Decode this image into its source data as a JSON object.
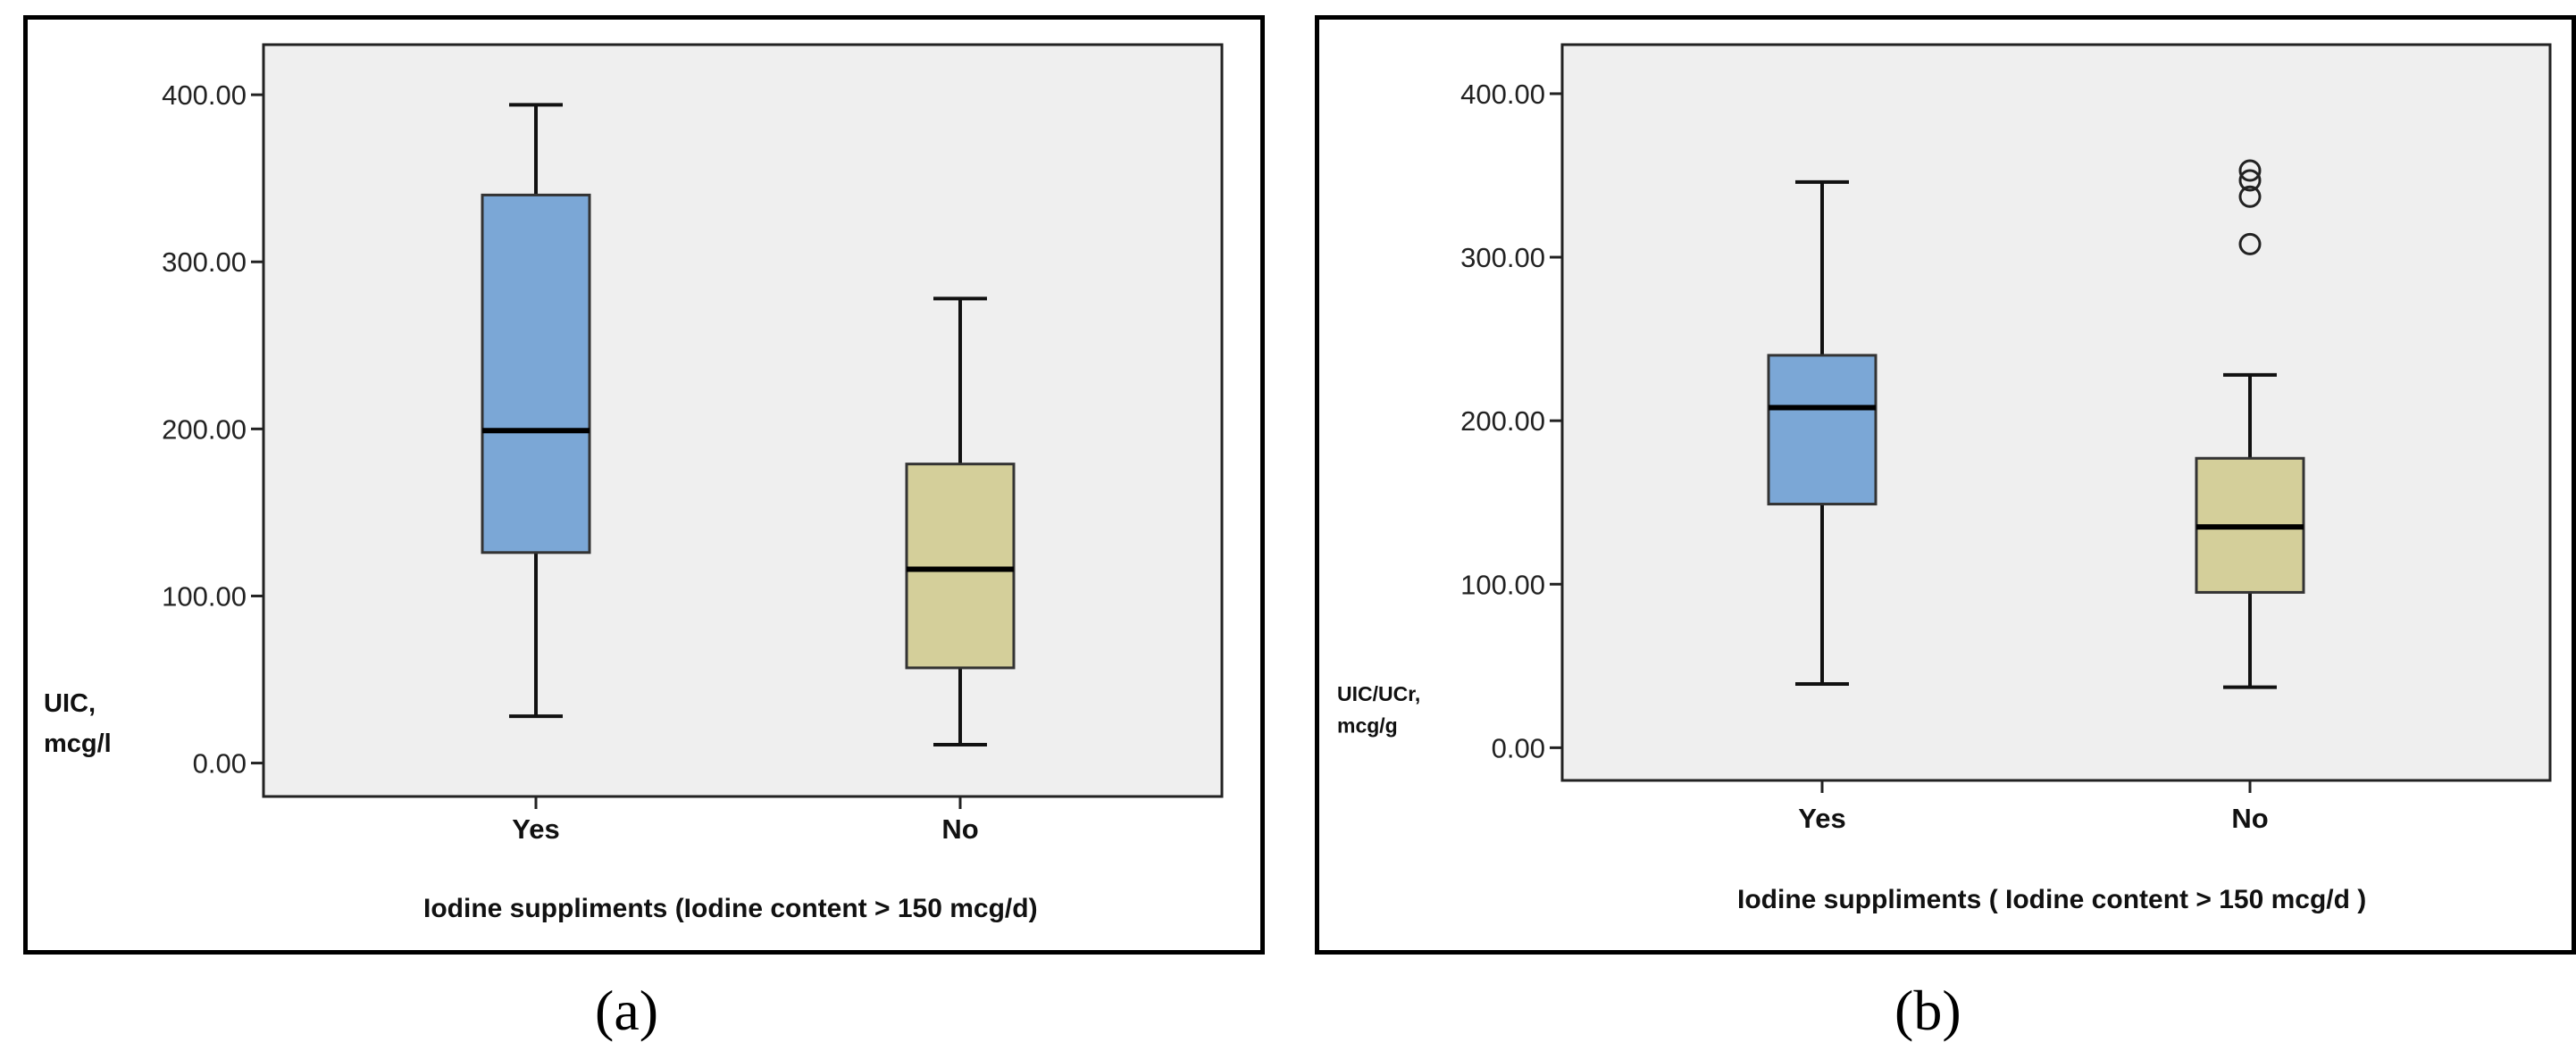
{
  "captions": {
    "a": "(a)",
    "b": "(b)"
  },
  "colors": {
    "yes_box": "#7ba7d6",
    "no_box": "#d4cf9a",
    "plot_bg": "#efefef",
    "frame": "#000000"
  },
  "chart_data": [
    {
      "type": "box",
      "panel": "a",
      "ylabel_lines": [
        "UIC,",
        "mcg/l"
      ],
      "xlabel": "Iodine suppliments (Iodine content > 150 mcg/d)",
      "ylim": [
        -20,
        430
      ],
      "yticks": [
        0,
        100,
        200,
        300,
        400
      ],
      "ytick_labels": [
        "0.00",
        "100.00",
        "200.00",
        "300.00",
        "400.00"
      ],
      "categories": [
        "Yes",
        "No"
      ],
      "boxes": [
        {
          "category": "Yes",
          "min": 28,
          "q1": 126,
          "median": 199,
          "q3": 340,
          "max": 394,
          "outliers": [],
          "color": "#7ba7d6"
        },
        {
          "category": "No",
          "min": 11,
          "q1": 57,
          "median": 116,
          "q3": 179,
          "max": 278,
          "outliers": [],
          "color": "#d4cf9a"
        }
      ]
    },
    {
      "type": "box",
      "panel": "b",
      "ylabel_lines": [
        "UIC/UCr,",
        "mcg/g"
      ],
      "xlabel": "Iodine suppliments ( Iodine  content > 150 mcg/d )",
      "ylim": [
        -20,
        430
      ],
      "yticks": [
        0,
        100,
        200,
        300,
        400
      ],
      "ytick_labels": [
        "0.00",
        "100.00",
        "200.00",
        "300.00",
        "400.00"
      ],
      "categories": [
        "Yes",
        "No"
      ],
      "boxes": [
        {
          "category": "Yes",
          "min": 39,
          "q1": 149,
          "median": 208,
          "q3": 240,
          "max": 346,
          "outliers": [],
          "color": "#7ba7d6"
        },
        {
          "category": "No",
          "min": 37,
          "q1": 95,
          "median": 135,
          "q3": 177,
          "max": 228,
          "outliers": [
            308,
            337,
            347,
            353
          ],
          "color": "#d4cf9a"
        }
      ]
    }
  ]
}
